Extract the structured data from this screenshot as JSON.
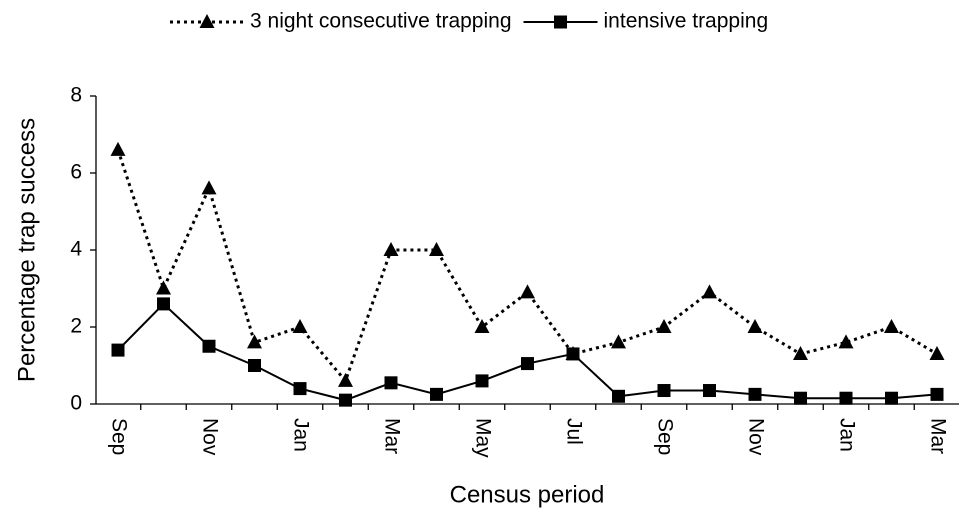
{
  "chart_data": {
    "type": "line",
    "y_label": "Percentage trap success",
    "x_label": "Census period",
    "categories": [
      "Sep",
      null,
      "Nov",
      null,
      "Jan",
      null,
      "Mar",
      null,
      "May",
      null,
      "Jul",
      null,
      "Sep",
      null,
      "Nov",
      null,
      "Jan",
      null,
      "Mar"
    ],
    "series": [
      {
        "name": "3 night consecutive trapping",
        "color": "#000000",
        "line_style": "dotted",
        "marker": "triangle",
        "values": [
          6.6,
          3.0,
          5.6,
          1.6,
          2.0,
          0.6,
          4.0,
          4.0,
          2.0,
          2.9,
          1.3,
          1.6,
          2.0,
          2.9,
          2.0,
          1.3,
          1.6,
          2.0,
          1.3
        ]
      },
      {
        "name": "intensive trapping",
        "color": "#000000",
        "line_style": "solid",
        "marker": "square",
        "values": [
          1.4,
          2.6,
          1.5,
          1.0,
          0.4,
          0.1,
          0.55,
          0.25,
          0.6,
          1.05,
          1.3,
          0.2,
          0.35,
          0.35,
          0.25,
          0.15,
          0.15,
          0.15,
          0.25
        ]
      }
    ],
    "ylim": [
      0,
      8
    ],
    "yticks": [
      0,
      2,
      4,
      6,
      8
    ],
    "grid": false,
    "legend": "top"
  }
}
